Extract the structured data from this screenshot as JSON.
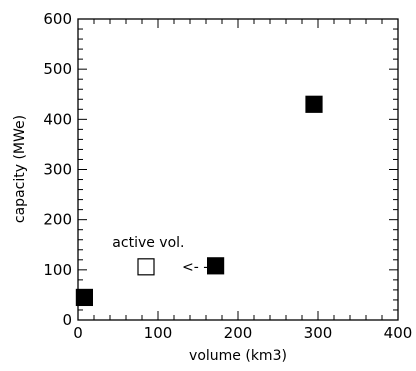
{
  "chart_data": {
    "type": "scatter",
    "xlabel": "volume  (km3)",
    "ylabel": "capacity  (MWe)",
    "xlim": [
      0,
      400
    ],
    "ylim": [
      0,
      600
    ],
    "x_ticks": [
      0,
      100,
      200,
      300,
      400
    ],
    "x_tick_labels": [
      "0",
      "100",
      "200",
      "300",
      "400"
    ],
    "y_ticks": [
      0,
      100,
      200,
      300,
      400,
      500,
      600
    ],
    "y_tick_labels": [
      "0",
      "100",
      "200",
      "300",
      "400",
      "500",
      "600"
    ],
    "grid": false,
    "points": [
      {
        "x": 8,
        "y": 45,
        "marker": "filled-square"
      },
      {
        "x": 172,
        "y": 108,
        "marker": "filled-square"
      },
      {
        "x": 295,
        "y": 430,
        "marker": "filled-square"
      },
      {
        "x": 85,
        "y": 106,
        "marker": "open-square"
      }
    ],
    "annotations": [
      {
        "text": "active  vol.",
        "x": 88,
        "y": 155
      },
      {
        "text": "<- -",
        "x": 130,
        "y": 107
      }
    ]
  }
}
